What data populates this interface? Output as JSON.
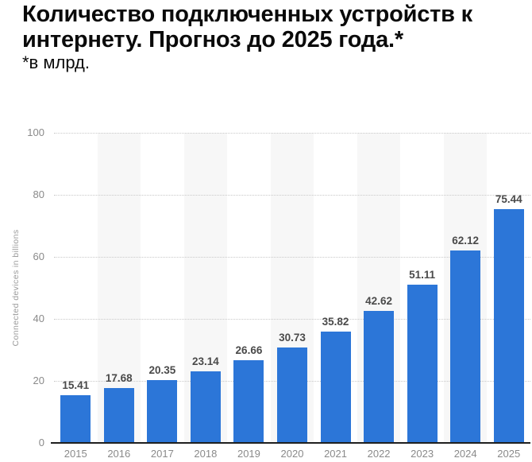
{
  "header": {
    "title": "Количество подключенных устройств к интернету. Прогноз до 2025 года.*",
    "subtitle": "*в млрд."
  },
  "chart_data": {
    "type": "bar",
    "title": "Количество подключенных устройств к интернету. Прогноз до 2025 года.*",
    "subtitle": "*в млрд.",
    "categories": [
      "2015",
      "2016",
      "2017",
      "2018",
      "2019",
      "2020",
      "2021",
      "2022",
      "2023",
      "2024",
      "2025"
    ],
    "values": [
      15.41,
      17.68,
      20.35,
      23.14,
      26.66,
      30.73,
      35.82,
      42.62,
      51.11,
      62.12,
      75.44
    ],
    "xlabel": "",
    "ylabel": "Connected devices in billions",
    "ylim": [
      0,
      100
    ],
    "yticks": [
      0,
      20,
      40,
      60,
      80,
      100
    ],
    "grid": "horizontal-dotted",
    "legend_position": "none",
    "bar_color": "#2c76d8",
    "stripe_color": "#f7f7f7",
    "value_label_color": "#4a4a4a",
    "tick_label_color": "#8a8a8a"
  }
}
